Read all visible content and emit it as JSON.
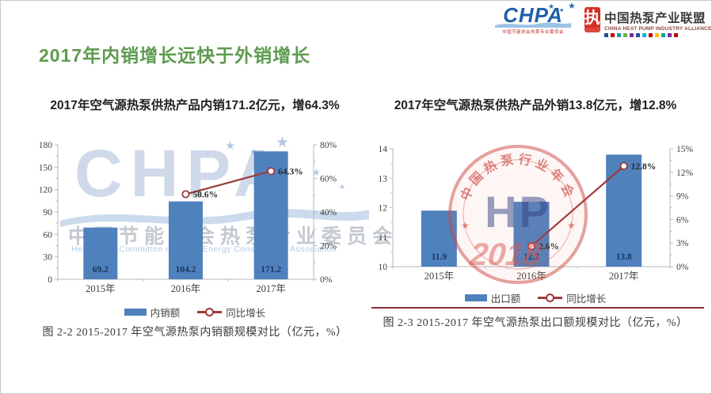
{
  "title": "2017年内销增长远快于外销增长",
  "header": {
    "chpa_logo": {
      "acronym": "CHPA",
      "caption": "中国节能协会热泵专业委员会"
    },
    "alliance_logo": {
      "badge_glyph": "执",
      "name_cn": "中国热泵产业联盟",
      "name_en": "CHINA HEAT PUMP INDUSTRY ALLIANCE",
      "bar_colors": [
        "#1f4e9c",
        "#c00000",
        "#00a0a0",
        "#70ad47",
        "#7030a0",
        "#1f4e9c",
        "#00b0f0",
        "#c00000",
        "#ffc000",
        "#00a0a0",
        "#7030a0",
        "#c00000"
      ]
    }
  },
  "watermarks": {
    "chpa": {
      "acronym": "CHPA",
      "line_cn": "中国节能协会热泵专业委员会",
      "line_en": "Heat Pump Committee of China Energy Conservation Association"
    },
    "stamp": {
      "arc_text": "中国热泵行业年会",
      "monogram": "HP",
      "year": "2018"
    }
  },
  "chart_data": [
    {
      "type": "bar",
      "title": "2017年空气源热泵供热产品内销171.2亿元，增64.3%",
      "categories": [
        "2015年",
        "2016年",
        "2017年"
      ],
      "series": [
        {
          "name": "内销额",
          "kind": "bar",
          "axis": "left",
          "values": [
            69.2,
            104.2,
            171.2
          ],
          "labels": [
            "69.2",
            "104.2",
            "171.2"
          ],
          "color": "#4f81bd"
        },
        {
          "name": "同比增长",
          "kind": "line",
          "axis": "right",
          "values": [
            null,
            50.6,
            64.3
          ],
          "labels": [
            "",
            "50.6%",
            "64.3%"
          ],
          "color": "#9c3a38"
        }
      ],
      "left_axis": {
        "min": 0,
        "max": 180,
        "step": 30,
        "labels": [
          "0",
          "30",
          "60",
          "90",
          "120",
          "150",
          "180"
        ]
      },
      "right_axis": {
        "min": 0,
        "max": 80,
        "step": 20,
        "labels": [
          "0%",
          "20%",
          "40%",
          "60%",
          "80%"
        ]
      },
      "legend": [
        "内销额",
        "同比增长"
      ],
      "grid": "off",
      "legend_position": "bottom",
      "caption": "图 2-2 2015-2017 年空气源热泵内销额规模对比（亿元，%）"
    },
    {
      "type": "bar",
      "title": "2017年空气源热泵供热产品外销13.8亿元，增12.8%",
      "categories": [
        "2015年",
        "2016年",
        "2017年"
      ],
      "series": [
        {
          "name": "出口额",
          "kind": "bar",
          "axis": "left",
          "values": [
            11.9,
            12.2,
            13.8
          ],
          "labels": [
            "11.9",
            "12.2",
            "13.8"
          ],
          "color": "#4f81bd"
        },
        {
          "name": "同比增长",
          "kind": "line",
          "axis": "right",
          "values": [
            null,
            2.6,
            12.8
          ],
          "labels": [
            "",
            "2.6%",
            "12.8%"
          ],
          "color": "#9c3a38"
        }
      ],
      "left_axis": {
        "min": 10,
        "max": 14,
        "step": 1,
        "labels": [
          "10",
          "11",
          "12",
          "13",
          "14"
        ]
      },
      "right_axis": {
        "min": 0,
        "max": 15,
        "step": 3,
        "labels": [
          "0%",
          "3%",
          "6%",
          "9%",
          "12%",
          "15%"
        ]
      },
      "legend": [
        "出口额",
        "同比增长"
      ],
      "grid": "off",
      "legend_position": "bottom",
      "caption": "图 2-3 2015-2017 年空气源热泵出口额规模对比（亿元，%）"
    }
  ],
  "colors": {
    "bar": "#4f81bd",
    "line": "#9c3a38",
    "title_green": "#5e9b4f",
    "divider": "#8e2f3e"
  }
}
